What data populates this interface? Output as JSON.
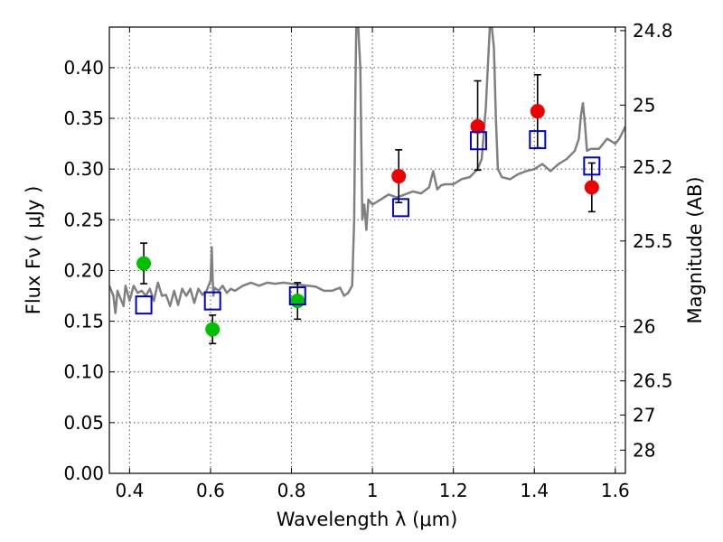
{
  "chart_data": {
    "type": "scatter",
    "xlabel": "Wavelength  λ (μm)",
    "ylabel": "Flux  Fν  ( μJy )",
    "y2label": "Magnitude (AB)",
    "xlim": [
      0.35,
      1.625
    ],
    "ylim": [
      0.0,
      0.44
    ],
    "grid": true,
    "x_ticks": [
      0.4,
      0.6,
      0.8,
      1.0,
      1.2,
      1.4,
      1.6
    ],
    "x_tick_labels": [
      "0.4",
      "0.6",
      "0.8",
      "1",
      "1.2",
      "1.4",
      "1.6"
    ],
    "y_ticks": [
      0.0,
      0.05,
      0.1,
      0.15,
      0.2,
      0.25,
      0.3,
      0.35,
      0.4
    ],
    "y_tick_labels": [
      "0.00",
      "0.05",
      "0.10",
      "0.15",
      "0.20",
      "0.25",
      "0.30",
      "0.35",
      "0.40"
    ],
    "y2_ticks": [
      {
        "label": "24.8",
        "mag": 24.8
      },
      {
        "label": "25",
        "mag": 25.0
      },
      {
        "label": "25.2",
        "mag": 25.2
      },
      {
        "label": "25.5",
        "mag": 25.5
      },
      {
        "label": "26",
        "mag": 26.0
      },
      {
        "label": "26.5",
        "mag": 26.5
      },
      {
        "label": "27",
        "mag": 27.0
      },
      {
        "label": "28",
        "mag": 28.0
      }
    ],
    "spectrum": {
      "color": "#808080",
      "x": [
        0.35,
        0.36,
        0.365,
        0.37,
        0.38,
        0.385,
        0.39,
        0.4,
        0.41,
        0.42,
        0.43,
        0.44,
        0.45,
        0.46,
        0.47,
        0.48,
        0.49,
        0.5,
        0.51,
        0.52,
        0.53,
        0.54,
        0.55,
        0.56,
        0.57,
        0.58,
        0.59,
        0.595,
        0.6,
        0.603,
        0.605,
        0.607,
        0.61,
        0.62,
        0.63,
        0.64,
        0.65,
        0.66,
        0.68,
        0.7,
        0.72,
        0.74,
        0.76,
        0.78,
        0.8,
        0.82,
        0.84,
        0.86,
        0.88,
        0.9,
        0.92,
        0.93,
        0.94,
        0.95,
        0.955,
        0.958,
        0.96,
        0.962,
        0.965,
        0.97,
        0.975,
        0.98,
        0.985,
        0.99,
        1.0,
        1.02,
        1.04,
        1.06,
        1.08,
        1.1,
        1.12,
        1.14,
        1.15,
        1.16,
        1.17,
        1.18,
        1.2,
        1.22,
        1.24,
        1.26,
        1.27,
        1.28,
        1.29,
        1.295,
        1.3,
        1.305,
        1.31,
        1.32,
        1.34,
        1.36,
        1.38,
        1.4,
        1.42,
        1.44,
        1.46,
        1.48,
        1.5,
        1.51,
        1.515,
        1.52,
        1.525,
        1.53,
        1.54,
        1.56,
        1.58,
        1.6,
        1.61,
        1.62,
        1.625
      ],
      "y": [
        0.185,
        0.175,
        0.158,
        0.18,
        0.17,
        0.165,
        0.185,
        0.17,
        0.185,
        0.178,
        0.18,
        0.175,
        0.182,
        0.17,
        0.188,
        0.175,
        0.176,
        0.165,
        0.18,
        0.166,
        0.182,
        0.175,
        0.182,
        0.168,
        0.182,
        0.176,
        0.18,
        0.185,
        0.19,
        0.223,
        0.195,
        0.175,
        0.183,
        0.18,
        0.185,
        0.178,
        0.182,
        0.18,
        0.185,
        0.188,
        0.185,
        0.188,
        0.187,
        0.188,
        0.187,
        0.186,
        0.185,
        0.184,
        0.18,
        0.18,
        0.183,
        0.175,
        0.178,
        0.185,
        0.25,
        0.38,
        0.44,
        0.44,
        0.44,
        0.4,
        0.25,
        0.265,
        0.24,
        0.27,
        0.265,
        0.27,
        0.275,
        0.272,
        0.275,
        0.278,
        0.276,
        0.282,
        0.298,
        0.28,
        0.284,
        0.285,
        0.285,
        0.29,
        0.292,
        0.3,
        0.31,
        0.36,
        0.44,
        0.44,
        0.42,
        0.35,
        0.3,
        0.292,
        0.29,
        0.295,
        0.298,
        0.3,
        0.305,
        0.298,
        0.305,
        0.31,
        0.318,
        0.33,
        0.352,
        0.365,
        0.345,
        0.318,
        0.32,
        0.32,
        0.33,
        0.325,
        0.33,
        0.338,
        0.342
      ]
    },
    "series": [
      {
        "marker": "circle",
        "color": "#00c000",
        "x": [
          0.435,
          0.605,
          0.815
        ],
        "y": [
          0.207,
          0.142,
          0.17
        ],
        "yerr_low": [
          0.02,
          0.014,
          0.018
        ],
        "yerr_high": [
          0.02,
          0.014,
          0.018
        ]
      },
      {
        "marker": "circle",
        "color": "#ee0000",
        "x": [
          1.065,
          1.26,
          1.408,
          1.542
        ],
        "y": [
          0.293,
          0.342,
          0.357,
          0.282
        ],
        "yerr_low": [
          0.026,
          0.043,
          0.036,
          0.024
        ],
        "yerr_high": [
          0.026,
          0.045,
          0.036,
          0.024
        ]
      },
      {
        "marker": "square-open",
        "color": "#0000cc",
        "x": [
          0.435,
          0.605,
          0.815,
          1.07,
          1.262,
          1.408,
          1.542
        ],
        "y": [
          0.166,
          0.17,
          0.175,
          0.262,
          0.328,
          0.329,
          0.303
        ]
      }
    ]
  }
}
